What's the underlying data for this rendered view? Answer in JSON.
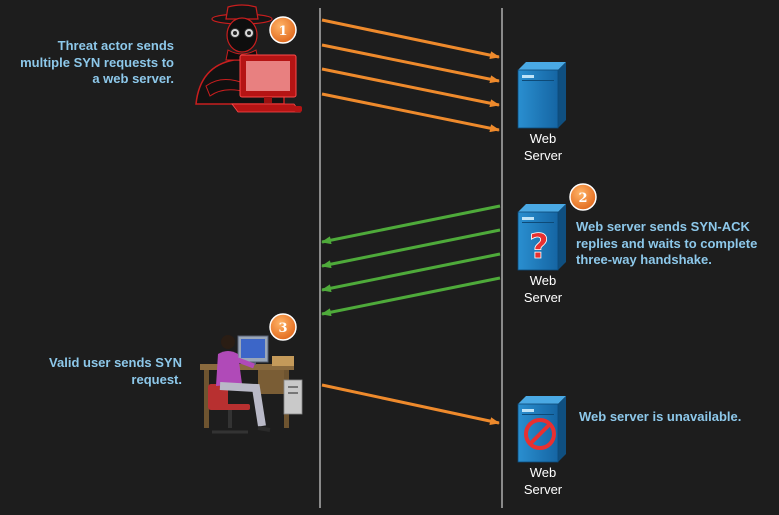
{
  "steps": {
    "step1": {
      "number": "1",
      "lines": [
        "Threat actor sends",
        "multiple SYN requests to",
        "a web server."
      ]
    },
    "step2": {
      "number": "2",
      "lines": [
        "Web server sends SYN-ACK",
        "replies and waits to complete",
        "three-way handshake."
      ]
    },
    "step3": {
      "number": "3",
      "lines": [
        "Valid user sends SYN",
        "request."
      ]
    },
    "unavailable": {
      "lines": [
        "Web server is unavailable."
      ]
    }
  },
  "servers": {
    "top": {
      "label_lines": [
        "Web",
        "Server"
      ]
    },
    "middle": {
      "label_lines": [
        "Web",
        "Server"
      ],
      "symbol": "?"
    },
    "bottom": {
      "label_lines": [
        "Web",
        "Server"
      ]
    }
  },
  "icons": {
    "attacker": "hooded-threat-actor-at-red-computer",
    "server_normal": "web-server-icon",
    "server_waiting": "web-server-question-icon",
    "server_blocked": "web-server-prohibited-icon",
    "user": "valid-user-at-desk-icon"
  },
  "colors": {
    "background": "#1d1d1d",
    "timeline": "#8a8a8a",
    "syn_arrow": "#ee8a2c",
    "synack_arrow": "#4eaa3a",
    "callout_text": "#8dc8ea",
    "badge": "#ef7d22",
    "server_blue": "#1f78b4",
    "attacker_red": "#c81e1e"
  }
}
